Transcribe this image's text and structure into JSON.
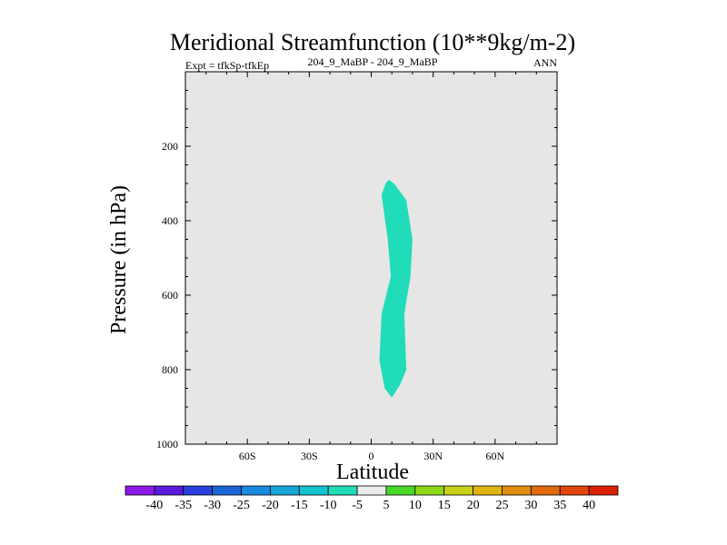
{
  "chart_data": {
    "type": "contour",
    "title": "Meridional Streamfunction (10**9kg/m-2)",
    "left_subtitle": "Expt = tfkSp-tfkEp",
    "center_subtitle": "204_9_MaBP - 204_9_MaBP",
    "right_subtitle": "ANN",
    "xlabel": "Latitude",
    "ylabel": "Pressure (in hPa)",
    "xlim": [
      -90,
      90
    ],
    "ylim": [
      1000,
      0
    ],
    "x_ticks": [
      {
        "value": -60,
        "label": "60S"
      },
      {
        "value": -30,
        "label": "30S"
      },
      {
        "value": 0,
        "label": "0"
      },
      {
        "value": 30,
        "label": "30N"
      },
      {
        "value": 60,
        "label": "60N"
      }
    ],
    "y_ticks": [
      {
        "value": 200,
        "label": "200"
      },
      {
        "value": 400,
        "label": "400"
      },
      {
        "value": 600,
        "label": "600"
      },
      {
        "value": 800,
        "label": "800"
      },
      {
        "value": 1000,
        "label": "1000"
      }
    ],
    "background_color": "#e6e6e6",
    "contour_region": {
      "range": "-10 to -5",
      "color": "#20dcb8",
      "outline": [
        [
          8.5,
          290
        ],
        [
          11,
          300
        ],
        [
          17,
          345
        ],
        [
          20,
          450
        ],
        [
          19,
          550
        ],
        [
          16,
          650
        ],
        [
          17,
          800
        ],
        [
          14,
          840
        ],
        [
          10,
          875
        ],
        [
          6.5,
          850
        ],
        [
          4,
          775
        ],
        [
          5,
          650
        ],
        [
          9.5,
          550
        ],
        [
          8,
          450
        ],
        [
          5,
          330
        ],
        [
          7,
          300
        ]
      ]
    },
    "colorbar": {
      "levels": [
        -40,
        -35,
        -30,
        -25,
        -20,
        -15,
        -10,
        -5,
        5,
        10,
        15,
        20,
        25,
        30,
        35,
        40
      ],
      "colors": [
        "#8b1ae6",
        "#5a1adc",
        "#2a40dc",
        "#1a66d6",
        "#1a8ae0",
        "#18a6d8",
        "#14c2d0",
        "#20dcb8",
        "#ececec",
        "#48d828",
        "#8ed818",
        "#c8d018",
        "#e0b412",
        "#e08e10",
        "#e06a0c",
        "#e0460a",
        "#dc2004"
      ]
    }
  }
}
